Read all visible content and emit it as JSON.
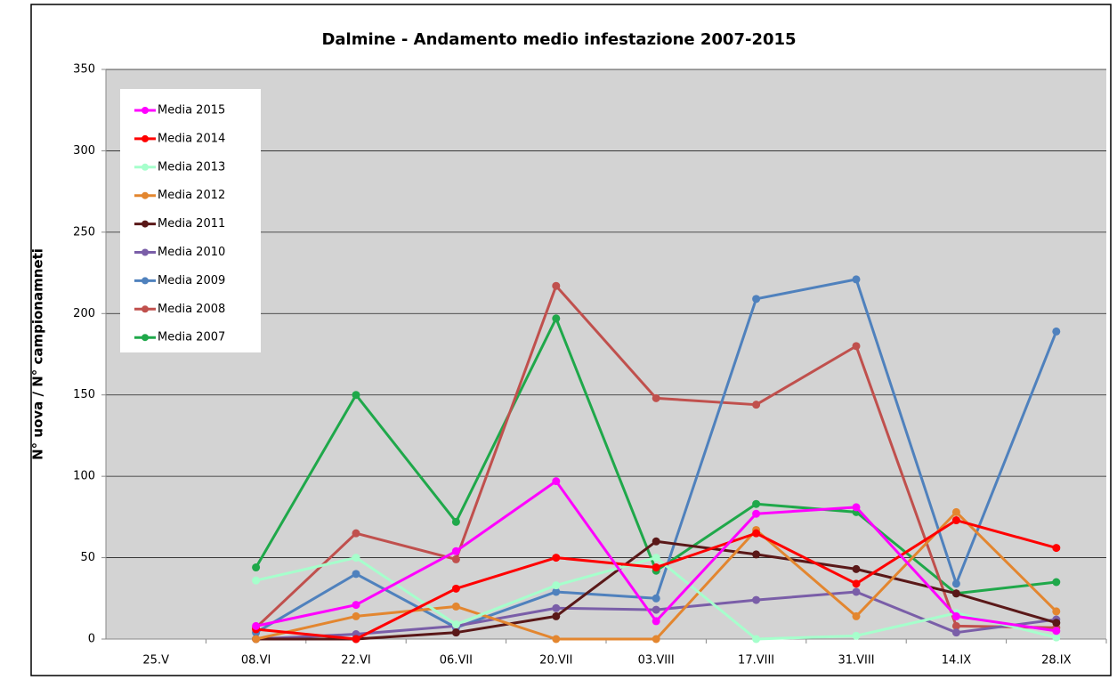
{
  "chart_data": {
    "type": "line",
    "title": "Dalmine - Andamento medio infestazione 2007-2015",
    "y_label": "N° uova / N° campionamneti",
    "categories": [
      "25.V",
      "08.VI",
      "22.VI",
      "06.VII",
      "20.VII",
      "03.VIII",
      "17.VIII",
      "31.VIII",
      "14.IX",
      "28.IX"
    ],
    "series": [
      {
        "name": "Media 2015",
        "color": "#ff00ff",
        "values": [
          null,
          8,
          21,
          54,
          97,
          11,
          77,
          81,
          14,
          5
        ]
      },
      {
        "name": "Media 2014",
        "color": "#ff0000",
        "values": [
          null,
          6,
          0,
          31,
          50,
          44,
          65,
          34,
          73,
          56
        ]
      },
      {
        "name": "Media 2013",
        "color": "#a6ffcc",
        "values": [
          null,
          36,
          50,
          9,
          33,
          50,
          0,
          2,
          16,
          1
        ]
      },
      {
        "name": "Media 2012",
        "color": "#e3862f",
        "values": [
          null,
          0,
          14,
          20,
          0,
          0,
          67,
          14,
          78,
          17
        ]
      },
      {
        "name": "Media 2011",
        "color": "#5a1818",
        "values": [
          null,
          0,
          0,
          4,
          14,
          60,
          52,
          43,
          28,
          10
        ]
      },
      {
        "name": "Media 2010",
        "color": "#7a5ea8",
        "values": [
          null,
          0,
          3,
          8,
          19,
          18,
          24,
          29,
          4,
          12
        ]
      },
      {
        "name": "Media 2009",
        "color": "#4f81bd",
        "values": [
          null,
          4,
          40,
          7,
          29,
          25,
          209,
          221,
          34,
          189
        ]
      },
      {
        "name": "Media 2008",
        "color": "#c0504d",
        "values": [
          null,
          7,
          65,
          49,
          217,
          148,
          144,
          180,
          8,
          7
        ]
      },
      {
        "name": "Media 2007",
        "color": "#1fa84a",
        "values": [
          null,
          44,
          150,
          72,
          197,
          42,
          83,
          78,
          28,
          35
        ]
      }
    ],
    "ylim": [
      0,
      350
    ],
    "yticks": [
      0,
      50,
      100,
      150,
      200,
      250,
      300,
      350
    ],
    "grid": true,
    "legend_position": "upper left",
    "plot_background": "#d3d3d3"
  }
}
